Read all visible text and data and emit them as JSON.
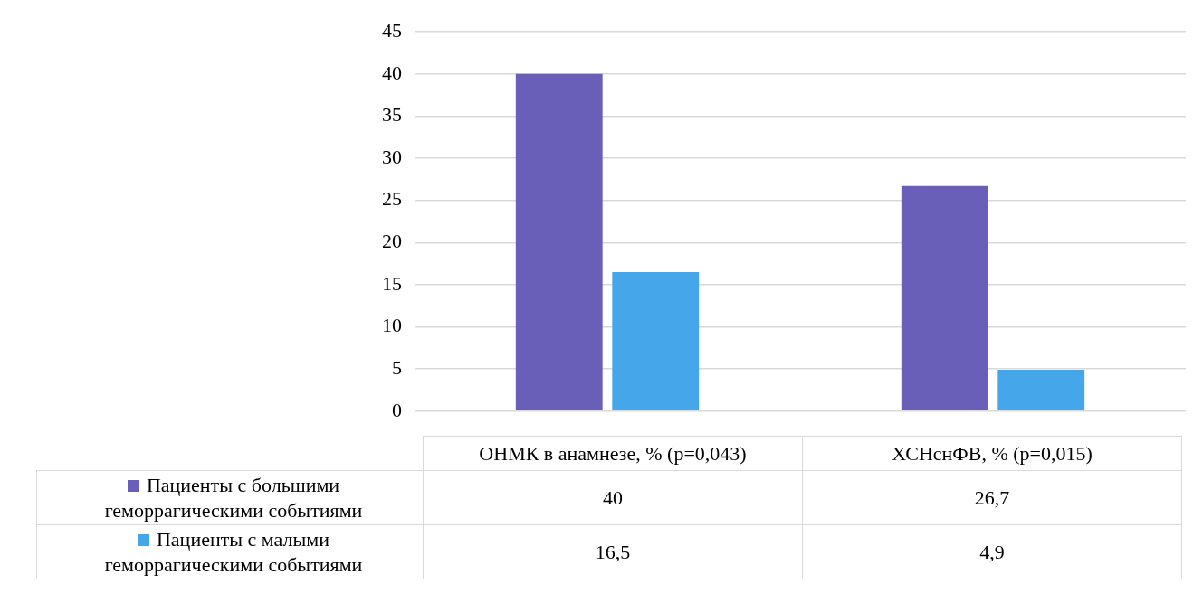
{
  "chart_data": {
    "type": "bar",
    "categories": [
      "ОНМК в анамнезе, % (p=0,043)",
      "ХСНснФВ, % (p=0,015)"
    ],
    "series": [
      {
        "name": "Пациенты с большими геморрагическими событиями",
        "color": "#6a5fb8",
        "values": [
          40,
          26.7
        ],
        "value_labels": [
          "40",
          "26,7"
        ]
      },
      {
        "name": "Пациенты с малыми геморрагическими событиями",
        "color": "#45a6e9",
        "values": [
          16.5,
          4.9
        ],
        "value_labels": [
          "16,5",
          "4,9"
        ]
      }
    ],
    "ylim": [
      0,
      45
    ],
    "yticks": [
      0,
      5,
      10,
      15,
      20,
      25,
      30,
      35,
      40,
      45
    ],
    "grid": "y",
    "legend": "bottom"
  }
}
